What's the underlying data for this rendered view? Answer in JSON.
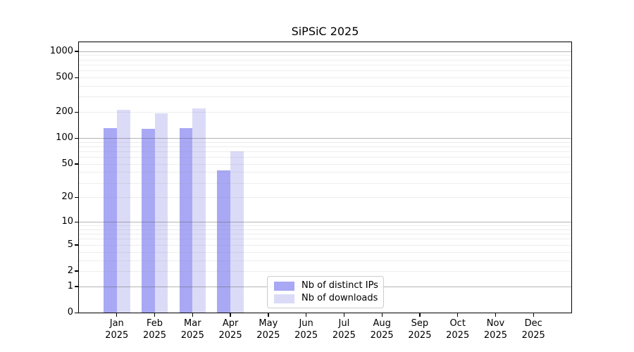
{
  "title": "SiPSiC 2025",
  "chart_data": {
    "type": "bar",
    "title": "SiPSiC 2025",
    "categories": [
      "Jan",
      "Feb",
      "Mar",
      "Apr",
      "May",
      "Jun",
      "Jul",
      "Aug",
      "Sep",
      "Oct",
      "Nov",
      "Dec"
    ],
    "category_year": "2025",
    "series": [
      {
        "name": "Nb of distinct IPs",
        "color": "#a8a8f5",
        "values": [
          131,
          128,
          129,
          42,
          0,
          0,
          0,
          0,
          0,
          0,
          0,
          0
        ]
      },
      {
        "name": "Nb of downloads",
        "color": "#dbdbf8",
        "values": [
          210,
          193,
          220,
          70,
          0,
          0,
          0,
          0,
          0,
          0,
          0,
          0
        ]
      }
    ],
    "y_ticks": [
      0,
      1,
      2,
      5,
      10,
      20,
      50,
      100,
      200,
      500,
      1000
    ],
    "y_scale": "log10(1+y)",
    "ylim": [
      0,
      1270
    ],
    "xlabel": "",
    "ylabel": "",
    "grid": true,
    "legend_position": "lower center"
  }
}
